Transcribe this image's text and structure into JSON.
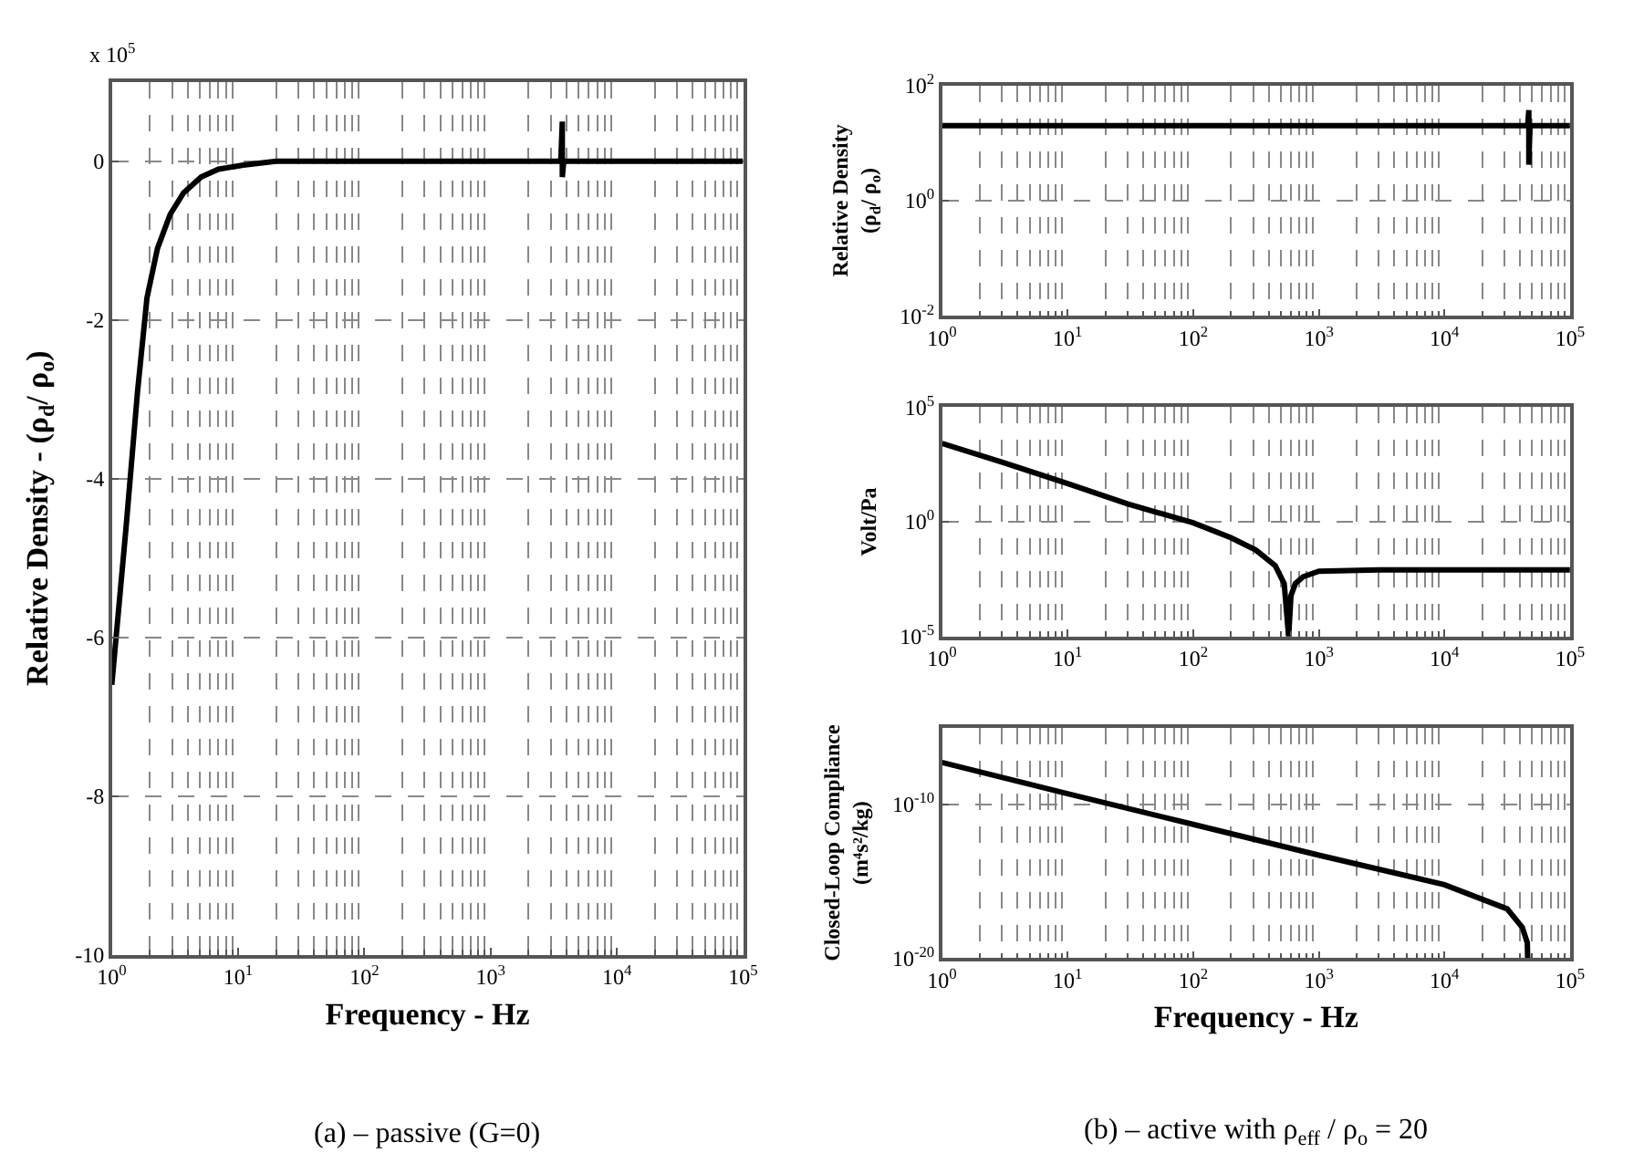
{
  "chart_data": [
    {
      "type": "line",
      "ylabel": "Relative Density - (ρ$_{d}$/ ρ$_{o}$)",
      "xlabel": "Frequency - Hz",
      "log": "x",
      "grid": true,
      "line_style": "solid",
      "marker": "none",
      "xlim": [
        1,
        100000
      ],
      "xticks": [
        {
          "value": 1,
          "label": "10$^{0}$"
        },
        {
          "value": 10,
          "label": "10$^{1}$"
        },
        {
          "value": 100,
          "label": "10$^{2}$"
        },
        {
          "value": 1000,
          "label": "10$^{3}$"
        },
        {
          "value": 10000,
          "label": "10$^{4}$"
        },
        {
          "value": 100000,
          "label": "10$^{5}$"
        }
      ],
      "ylim": [
        -10,
        1
      ],
      "yticks": [
        0,
        -2,
        -4,
        -6,
        -8,
        -10
      ],
      "annotations": [
        "x 10$^{5}$",
        "(a) – passive (G=0)"
      ],
      "series": [
        {
          "color": "#000000",
          "x": [
            1,
            1.3,
            1.6,
            1.9,
            2.3,
            2.9,
            3.7,
            5.1,
            7,
            11,
            20,
            100,
            1000,
            3600,
            3700,
            3700,
            3800,
            10000,
            100000
          ],
          "values": [
            -6.6,
            -4.6,
            -2.9,
            -1.72,
            -1.1,
            -0.67,
            -0.4,
            -0.2,
            -0.1,
            -0.05,
            0,
            0,
            0,
            0,
            0.5,
            -0.2,
            0,
            0,
            0
          ]
        }
      ]
    },
    {
      "type": "line",
      "ylabel": "Relative Density\n(ρ$_{d}$/ ρ$_{o}$)",
      "log": "xy",
      "grid": true,
      "line_style": "solid",
      "marker": "none",
      "xlim": [
        1,
        100000
      ],
      "xticks": [
        {
          "value": 1,
          "label": "10$^{0}$"
        },
        {
          "value": 10,
          "label": "10$^{1}$"
        },
        {
          "value": 100,
          "label": "10$^{2}$"
        },
        {
          "value": 1000,
          "label": "10$^{3}$"
        },
        {
          "value": 10000,
          "label": "10$^{4}$"
        },
        {
          "value": 100000,
          "label": "10$^{5}$"
        }
      ],
      "ylim": [
        0.01,
        100
      ],
      "yticks": [
        {
          "value": 0.01,
          "label": "10$^{-2}$"
        },
        {
          "value": 1,
          "label": "10$^{0}$"
        },
        {
          "value": 100,
          "label": "10$^{2}$"
        }
      ],
      "series": [
        {
          "color": "#000000",
          "x": [
            1,
            10,
            100,
            1000,
            10000,
            46000,
            47000,
            47000,
            48000,
            100000
          ],
          "values": [
            20,
            20,
            20,
            20,
            20,
            20,
            37,
            4.2,
            20,
            20
          ]
        }
      ]
    },
    {
      "type": "line",
      "ylabel": "Volt/Pa",
      "log": "xy",
      "grid": true,
      "line_style": "solid",
      "marker": "none",
      "xlim": [
        1,
        100000
      ],
      "xticks": [
        {
          "value": 1,
          "label": "10$^{0}$"
        },
        {
          "value": 10,
          "label": "10$^{1}$"
        },
        {
          "value": 100,
          "label": "10$^{2}$"
        },
        {
          "value": 1000,
          "label": "10$^{3}$"
        },
        {
          "value": 10000,
          "label": "10$^{4}$"
        },
        {
          "value": 100000,
          "label": "10$^{5}$"
        }
      ],
      "ylim": [
        1e-05,
        100000
      ],
      "yticks": [
        {
          "value": 1e-05,
          "label": "10$^{-5}$"
        },
        {
          "value": 1,
          "label": "10$^{0}$"
        },
        {
          "value": 100000,
          "label": "10$^{5}$"
        }
      ],
      "series": [
        {
          "color": "#000000",
          "x": [
            1,
            3,
            10,
            30,
            100,
            200,
            316,
            450,
            530,
            575,
            600,
            650,
            750,
            1000,
            3000,
            10000,
            100000
          ],
          "values": [
            2600,
            400,
            46,
            6,
            0.9,
            0.2,
            0.058,
            0.012,
            0.002,
            1e-05,
            0.0006,
            0.002,
            0.004,
            0.007,
            0.008,
            0.008,
            0.008
          ]
        }
      ]
    },
    {
      "type": "line",
      "ylabel": "Closed-Loop Compliance\n(m⁴s²/kg)",
      "xlabel": "Frequency - Hz",
      "log": "xy",
      "grid": true,
      "line_style": "solid",
      "marker": "none",
      "xlim": [
        1,
        100000
      ],
      "xticks": [
        {
          "value": 1,
          "label": "10$^{0}$"
        },
        {
          "value": 10,
          "label": "10$^{1}$"
        },
        {
          "value": 100,
          "label": "10$^{2}$"
        },
        {
          "value": 1000,
          "label": "10$^{3}$"
        },
        {
          "value": 10000,
          "label": "10$^{4}$"
        },
        {
          "value": 100000,
          "label": "10$^{5}$"
        }
      ],
      "ylim": [
        1e-20,
        1e-05
      ],
      "yticks": [
        {
          "value": 1e-20,
          "label": "10$^{-20}$"
        },
        {
          "value": 1e-10,
          "label": "10$^{-10}$"
        }
      ],
      "annotations": [
        "(b) – active with ρ$_{eff}$ / ρ$_{o}$ = 20"
      ],
      "series": [
        {
          "color": "#000000",
          "x": [
            1,
            10,
            100,
            1000,
            10000,
            31600,
            41700,
            45700,
            46000
          ],
          "values": [
            5.4e-08,
            5e-10,
            5e-12,
            5e-14,
            6e-16,
            1.6e-17,
            1e-18,
            1e-19,
            1e-20
          ]
        }
      ]
    }
  ]
}
